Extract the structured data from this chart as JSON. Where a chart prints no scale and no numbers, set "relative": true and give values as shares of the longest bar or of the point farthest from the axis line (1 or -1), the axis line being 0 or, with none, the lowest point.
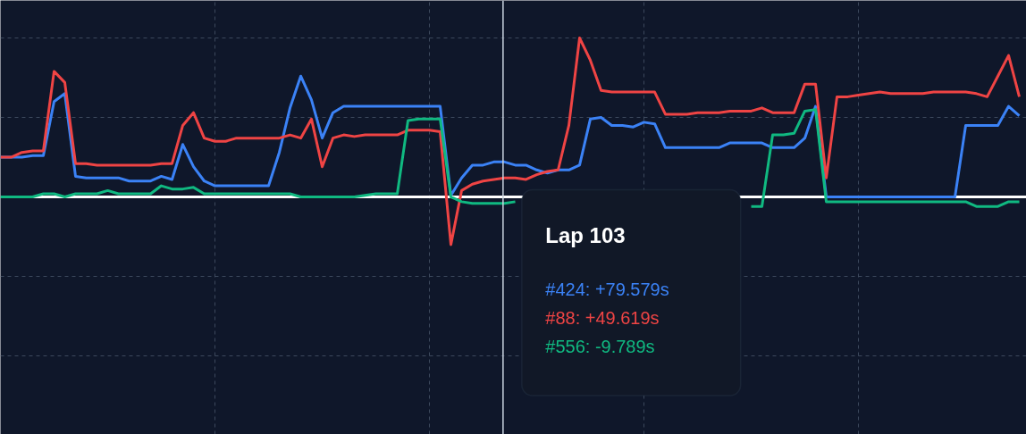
{
  "chart_data": {
    "type": "line",
    "relative": true,
    "grid": true,
    "line_style": "solid",
    "categories": [
      null,
      null,
      null,
      null,
      null,
      null,
      null,
      null,
      null,
      null,
      null,
      null,
      null,
      null,
      null,
      null,
      null,
      null,
      null,
      null,
      null,
      null,
      null,
      null,
      null,
      null,
      null,
      null,
      null,
      null,
      null,
      null,
      null,
      null,
      null,
      null,
      null,
      null,
      null,
      null,
      null,
      null,
      null,
      null,
      null,
      null,
      null,
      null,
      null,
      null,
      null,
      null,
      null,
      null,
      null,
      null,
      null,
      null,
      null,
      null,
      null,
      null,
      null,
      null,
      null,
      null,
      null,
      null,
      null,
      null,
      null,
      null,
      null,
      null,
      null,
      null,
      null,
      null,
      null,
      null,
      null,
      null,
      null,
      null,
      null,
      null,
      null,
      null,
      null,
      null,
      null,
      null,
      null,
      null,
      null,
      null
    ],
    "series": [
      {
        "color": "#3b82f6",
        "values": [
          0.25,
          0.25,
          0.25,
          0.26,
          0.26,
          0.6,
          0.65,
          0.13,
          0.12,
          0.12,
          0.12,
          0.12,
          0.1,
          0.1,
          0.1,
          0.13,
          0.11,
          0.33,
          0.19,
          0.1,
          0.07,
          0.07,
          0.07,
          0.07,
          0.07,
          0.07,
          0.28,
          0.56,
          0.76,
          0.61,
          0.37,
          0.53,
          0.57,
          0.57,
          0.57,
          0.57,
          0.57,
          0.57,
          0.57,
          0.57,
          0.57,
          0.57,
          0.01,
          0.12,
          0.2,
          0.2,
          0.22,
          0.22,
          0.2,
          0.2,
          0.17,
          0.15,
          0.17,
          0.17,
          0.2,
          0.49,
          0.5,
          0.45,
          0.45,
          0.44,
          0.47,
          0.46,
          0.31,
          0.31,
          0.31,
          0.31,
          0.31,
          0.31,
          0.34,
          0.34,
          0.34,
          0.34,
          0.31,
          0.31,
          0.31,
          0.37,
          0.57,
          0.0,
          0.0,
          0.0,
          0.0,
          0.0,
          0.0,
          0.0,
          0.0,
          0.0,
          0.0,
          0.0,
          0.0,
          0.0,
          0.45,
          0.45,
          0.45,
          0.45,
          0.57,
          0.51
        ]
      },
      {
        "color": "#ef4444",
        "values": [
          0.25,
          0.25,
          0.28,
          0.29,
          0.29,
          0.79,
          0.72,
          0.21,
          0.21,
          0.2,
          0.2,
          0.2,
          0.2,
          0.2,
          0.2,
          0.21,
          0.21,
          0.45,
          0.53,
          0.37,
          0.35,
          0.35,
          0.37,
          0.37,
          0.37,
          0.37,
          0.37,
          0.39,
          0.37,
          0.49,
          0.19,
          0.37,
          0.39,
          0.38,
          0.39,
          0.39,
          0.39,
          0.39,
          0.42,
          0.42,
          0.42,
          0.41,
          -0.3,
          0.04,
          0.08,
          0.1,
          0.11,
          0.12,
          0.12,
          0.11,
          0.14,
          0.16,
          0.17,
          0.45,
          1.0,
          0.86,
          0.67,
          0.66,
          0.66,
          0.66,
          0.66,
          0.66,
          0.52,
          0.52,
          0.52,
          0.53,
          0.53,
          0.53,
          0.54,
          0.54,
          0.54,
          0.56,
          0.53,
          0.53,
          0.53,
          0.71,
          0.71,
          0.12,
          0.63,
          0.63,
          0.64,
          0.65,
          0.66,
          0.65,
          0.65,
          0.65,
          0.65,
          0.66,
          0.66,
          0.66,
          0.66,
          0.65,
          0.63,
          0.76,
          0.89,
          0.63
        ]
      },
      {
        "color": "#10b981",
        "values": [
          0,
          0,
          0,
          0,
          0.02,
          0.02,
          0,
          0.02,
          0.02,
          0.02,
          0.04,
          0.02,
          0.02,
          0.02,
          0.02,
          0.07,
          0.05,
          0.05,
          0.06,
          0.02,
          0.02,
          0.02,
          0.02,
          0.02,
          0.02,
          0.02,
          0.02,
          0.02,
          0,
          0,
          0,
          0,
          0,
          0,
          0.01,
          0.02,
          0.02,
          0.02,
          0.48,
          0.49,
          0.49,
          0.49,
          0,
          -0.03,
          -0.04,
          -0.04,
          -0.04,
          -0.04,
          -0.03,
          null,
          null,
          null,
          null,
          null,
          null,
          null,
          null,
          null,
          null,
          null,
          null,
          null,
          null,
          null,
          null,
          null,
          null,
          null,
          null,
          null,
          -0.06,
          -0.06,
          0.39,
          0.39,
          0.4,
          0.54,
          0.55,
          -0.03,
          -0.03,
          -0.03,
          -0.03,
          -0.03,
          -0.03,
          -0.03,
          -0.03,
          -0.03,
          -0.03,
          -0.03,
          -0.03,
          -0.03,
          -0.03,
          -0.06,
          -0.06,
          -0.06,
          -0.03,
          -0.03
        ]
      }
    ],
    "annotations": [
      "Lap 103",
      "#424: +79.579s",
      "#88: +49.619s",
      "#556: -9.789s"
    ]
  }
}
